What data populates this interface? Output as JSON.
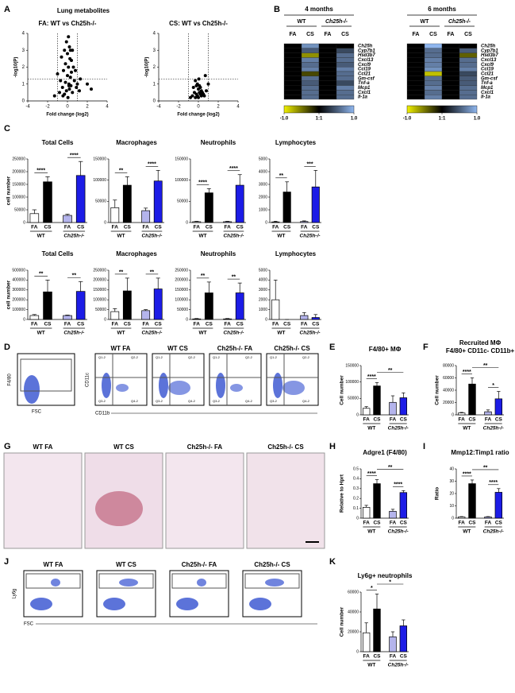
{
  "figure": {
    "letters": [
      "A",
      "B",
      "C",
      "D",
      "E",
      "F",
      "G",
      "H",
      "I",
      "J",
      "K"
    ],
    "volcano_title": "Lung metabolites",
    "samples": [
      "WT FA",
      "WT CS",
      "Ch25h-/- FA",
      "Ch25h-/- CS"
    ],
    "gate_axes": [
      "F4/80",
      "FSC"
    ],
    "flow_axes": [
      "CD11c",
      "CD11b"
    ],
    "quadrants": [
      "Q1-2",
      "Q2-2",
      "Q3-2",
      "Q4-2"
    ],
    "ly6g_axes": [
      "Ly6g",
      "FSC"
    ]
  },
  "chart_data": [
    {
      "type": "scatter",
      "title": "FA: WT vs Ch25h-/-",
      "xlabel": "Fold change (log2)",
      "ylabel": "-log10(P)",
      "x": [
        -1.3,
        -1.0,
        -0.8,
        -0.6,
        -0.5,
        -0.4,
        -0.3,
        -0.3,
        -0.2,
        -0.2,
        -0.1,
        -0.1,
        0,
        0,
        0.05,
        0.1,
        0.1,
        0.15,
        0.2,
        0.2,
        0.25,
        0.3,
        0.3,
        0.35,
        0.4,
        0.4,
        0.5,
        0.5,
        0.6,
        0.7,
        0.8,
        0.9,
        1.0,
        1.2,
        1.3,
        2.0,
        2.4,
        -0.7,
        -0.45,
        0.15
      ],
      "values": [
        0.3,
        1.6,
        0.5,
        2.6,
        0.8,
        1.8,
        3.0,
        0.4,
        2.2,
        1.1,
        3.5,
        0.6,
        2.8,
        1.5,
        0.2,
        3.8,
        2.0,
        1.0,
        3.2,
        0.7,
        2.5,
        1.4,
        3.0,
        0.9,
        2.4,
        1.7,
        3.0,
        0.5,
        2.0,
        1.2,
        1.8,
        0.8,
        1.0,
        0.6,
        1.3,
        1.0,
        0.7,
        1.2,
        0.3,
        0.9
      ],
      "xlim": [
        -4,
        4
      ],
      "xticks": [
        -4,
        -2,
        0,
        2,
        4
      ],
      "ylim": [
        0,
        4
      ],
      "yticks": [
        0,
        1,
        2,
        3,
        4
      ],
      "xlines": [
        -1,
        1
      ],
      "ylines": [
        1.3
      ],
      "color": "#000000"
    },
    {
      "type": "scatter",
      "title": "CS: WT vs Ch25h-/-",
      "xlabel": "Fold change (log2)",
      "ylabel": "-log10(P)",
      "x": [
        -0.6,
        -0.5,
        -0.4,
        -0.3,
        -0.3,
        -0.2,
        -0.2,
        -0.1,
        -0.1,
        0,
        0,
        0.05,
        0.1,
        0.1,
        0.2,
        0.2,
        0.3,
        0.3,
        0.4,
        0.5,
        0.6,
        0.7,
        0.8,
        1.0,
        -0.8
      ],
      "values": [
        0.3,
        0.8,
        0.5,
        1.2,
        0.2,
        0.9,
        0.4,
        1.0,
        0.3,
        0.7,
        0.2,
        1.3,
        0.5,
        0.9,
        0.4,
        0.8,
        0.3,
        0.6,
        0.5,
        0.4,
        0.3,
        1.5,
        0.6,
        1.0,
        0.2
      ],
      "xlim": [
        -4,
        4
      ],
      "xticks": [
        -4,
        -2,
        0,
        2,
        4
      ],
      "ylim": [
        0,
        4
      ],
      "yticks": [
        0,
        1,
        2,
        3,
        4
      ],
      "xlines": [
        -1,
        1
      ],
      "ylines": [
        1.3
      ],
      "color": "#000000"
    },
    {
      "type": "heatmap",
      "title": "4 months",
      "groups": [
        "WT",
        "Ch25h-/-"
      ],
      "columns": [
        "FA",
        "CS",
        "FA",
        "CS"
      ],
      "rows": [
        "Ch25h",
        "Cyp7b1",
        "Hsd3b7",
        "Cxcl13",
        "Cxcl9",
        "Ccl19",
        "Ccl21",
        "Gm-csf",
        "Tnf-a",
        "Mcp1",
        "Cxcl1",
        "Il-1a"
      ],
      "values": [
        [
          0,
          0.8,
          0,
          0
        ],
        [
          0,
          0.5,
          0,
          0.4
        ],
        [
          0,
          -0.6,
          0,
          0.6
        ],
        [
          0,
          0.7,
          0,
          0.6
        ],
        [
          0,
          0.6,
          0,
          0.5
        ],
        [
          0,
          0.7,
          0,
          0.7
        ],
        [
          0,
          -0.3,
          0,
          0.6
        ],
        [
          0,
          0.6,
          0,
          0.6
        ],
        [
          0,
          0.5,
          0,
          0.4
        ],
        [
          0,
          0.6,
          0,
          0.7
        ],
        [
          0,
          0.6,
          0,
          0.6
        ],
        [
          0,
          0.6,
          0,
          0.6
        ]
      ],
      "zlim": [
        -1,
        1
      ],
      "zticks": [
        {
          "value": -1,
          "label": "-1.0"
        },
        {
          "value": 0,
          "label": "1:1"
        },
        {
          "value": 1,
          "label": "1.0"
        }
      ],
      "colors": [
        "#f0f000",
        "#000000",
        "#8fb6ee"
      ]
    },
    {
      "type": "heatmap",
      "title": "6 months",
      "groups": [
        "WT",
        "Ch25h-/-"
      ],
      "columns": [
        "FA",
        "CS",
        "FA",
        "CS"
      ],
      "rows": [
        "Ch25h",
        "Cyp7b1",
        "Hsd3b7",
        "Cxcl13",
        "Cxcl9",
        "Ccl19",
        "Ccl21",
        "Gm-csf",
        "Tnf-a",
        "Mcp1",
        "Cxcl1",
        "Il-1a"
      ],
      "values": [
        [
          0,
          1,
          0,
          0
        ],
        [
          0,
          0.6,
          0,
          0.5
        ],
        [
          0,
          0.6,
          0,
          -0.4
        ],
        [
          0,
          0.7,
          0,
          0.6
        ],
        [
          0,
          0.7,
          0,
          0.6
        ],
        [
          0,
          0.8,
          0,
          0.7
        ],
        [
          0,
          -0.8,
          0,
          0.4
        ],
        [
          0,
          0.6,
          0,
          0.5
        ],
        [
          0,
          0.6,
          0,
          0.5
        ],
        [
          0,
          0.7,
          0,
          0.6
        ],
        [
          0,
          0.6,
          0,
          0.6
        ],
        [
          0,
          0.7,
          0,
          0.6
        ]
      ],
      "zlim": [
        -1,
        1
      ],
      "zticks": [
        {
          "value": -1,
          "label": "-1.0"
        },
        {
          "value": 0,
          "label": "1:1"
        },
        {
          "value": 1,
          "label": "1.0"
        }
      ],
      "colors": [
        "#f0f000",
        "#000000",
        "#8fb6ee"
      ]
    },
    {
      "type": "bar",
      "title": "Total Cells",
      "ylabel": "cell number",
      "categories": [
        "FA",
        "CS",
        "FA",
        "CS"
      ],
      "groups": [
        "WT",
        "Ch25h-/-"
      ],
      "values": [
        35000,
        160000,
        28000,
        185000
      ],
      "errors": [
        15000,
        20000,
        5000,
        55000
      ],
      "colors": [
        "#ffffff",
        "#000000",
        "#b4b4ec",
        "#1c1ce6"
      ],
      "ylim": [
        0,
        250000
      ],
      "yticks": [
        0,
        50000,
        100000,
        150000,
        200000,
        250000
      ],
      "significance": [
        {
          "label": "****",
          "bars": [
            0,
            1
          ]
        },
        {
          "label": "****",
          "bars": [
            2,
            3
          ]
        }
      ]
    },
    {
      "type": "bar",
      "title": "Macrophages",
      "categories": [
        "FA",
        "CS",
        "FA",
        "CS"
      ],
      "groups": [
        "WT",
        "Ch25h-/-"
      ],
      "values": [
        35000,
        88000,
        28000,
        98000
      ],
      "errors": [
        18000,
        20000,
        6000,
        25000
      ],
      "colors": [
        "#ffffff",
        "#000000",
        "#b4b4ec",
        "#1c1ce6"
      ],
      "ylim": [
        0,
        150000
      ],
      "yticks": [
        0,
        50000,
        100000,
        150000
      ],
      "significance": [
        {
          "label": "**",
          "bars": [
            0,
            1
          ]
        },
        {
          "label": "****",
          "bars": [
            2,
            3
          ]
        }
      ]
    },
    {
      "type": "bar",
      "title": "Neutrophils",
      "categories": [
        "FA",
        "CS",
        "FA",
        "CS"
      ],
      "groups": [
        "WT",
        "Ch25h-/-"
      ],
      "values": [
        2000,
        70000,
        2000,
        88000
      ],
      "errors": [
        1000,
        10000,
        1000,
        25000
      ],
      "colors": [
        "#ffffff",
        "#000000",
        "#b4b4ec",
        "#1c1ce6"
      ],
      "ylim": [
        0,
        150000
      ],
      "yticks": [
        0,
        50000,
        100000,
        150000
      ],
      "significance": [
        {
          "label": "****",
          "bars": [
            0,
            1
          ]
        },
        {
          "label": "****",
          "bars": [
            2,
            3
          ]
        }
      ]
    },
    {
      "type": "bar",
      "title": "Lymphocytes",
      "categories": [
        "FA",
        "CS",
        "FA",
        "CS"
      ],
      "groups": [
        "WT",
        "Ch25h-/-"
      ],
      "values": [
        50,
        2400,
        80,
        2800
      ],
      "errors": [
        50,
        800,
        50,
        1300
      ],
      "colors": [
        "#ffffff",
        "#000000",
        "#b4b4ec",
        "#1c1ce6"
      ],
      "ylim": [
        0,
        5000
      ],
      "yticks": [
        0,
        1000,
        2000,
        3000,
        4000,
        5000
      ],
      "significance": [
        {
          "label": "**",
          "bars": [
            0,
            1
          ]
        },
        {
          "label": "***",
          "bars": [
            2,
            3
          ]
        }
      ]
    },
    {
      "type": "bar",
      "title": "Total Cells",
      "ylabel": "cell number",
      "categories": [
        "FA",
        "CS",
        "FA",
        "CS"
      ],
      "groups": [
        "WT",
        "Ch25h-/-"
      ],
      "values": [
        40000,
        280000,
        40000,
        285000
      ],
      "errors": [
        10000,
        120000,
        5000,
        100000
      ],
      "colors": [
        "#ffffff",
        "#000000",
        "#b4b4ec",
        "#1c1ce6"
      ],
      "ylim": [
        0,
        500000
      ],
      "yticks": [
        0,
        100000,
        200000,
        300000,
        400000,
        500000
      ],
      "significance": [
        {
          "label": "**",
          "bars": [
            0,
            1
          ]
        },
        {
          "label": "**",
          "bars": [
            2,
            3
          ]
        }
      ]
    },
    {
      "type": "bar",
      "title": "Macrophages",
      "categories": [
        "FA",
        "CS",
        "FA",
        "CS"
      ],
      "groups": [
        "WT",
        "Ch25h-/-"
      ],
      "values": [
        40000,
        145000,
        45000,
        155000
      ],
      "errors": [
        15000,
        65000,
        5000,
        55000
      ],
      "colors": [
        "#ffffff",
        "#000000",
        "#b4b4ec",
        "#1c1ce6"
      ],
      "ylim": [
        0,
        250000
      ],
      "yticks": [
        0,
        50000,
        100000,
        150000,
        200000,
        250000
      ],
      "significance": [
        {
          "label": "**",
          "bars": [
            0,
            1
          ]
        },
        {
          "label": "**",
          "bars": [
            2,
            3
          ]
        }
      ]
    },
    {
      "type": "bar",
      "title": "Neutrophils",
      "categories": [
        "FA",
        "CS",
        "FA",
        "CS"
      ],
      "groups": [
        "WT",
        "Ch25h-/-"
      ],
      "values": [
        3000,
        135000,
        3000,
        135000
      ],
      "errors": [
        2000,
        55000,
        2000,
        50000
      ],
      "colors": [
        "#ffffff",
        "#000000",
        "#b4b4ec",
        "#1c1ce6"
      ],
      "ylim": [
        0,
        250000
      ],
      "yticks": [
        0,
        50000,
        100000,
        150000,
        200000,
        250000
      ],
      "significance": [
        {
          "label": "**",
          "bars": [
            0,
            1
          ]
        },
        {
          "label": "**",
          "bars": [
            2,
            3
          ]
        }
      ]
    },
    {
      "type": "bar",
      "title": "Lymphocytes",
      "categories": [
        "FA",
        "CS",
        "FA",
        "CS"
      ],
      "groups": [
        "WT",
        "Ch25h-/-"
      ],
      "values": [
        2000,
        0,
        400,
        200
      ],
      "errors": [
        2000,
        0,
        300,
        300
      ],
      "colors": [
        "#ffffff",
        "#000000",
        "#b4b4ec",
        "#1c1ce6"
      ],
      "ylim": [
        0,
        5000
      ],
      "yticks": [
        0,
        1000,
        2000,
        3000,
        4000,
        5000
      ],
      "significance": []
    },
    {
      "type": "bar",
      "title": "F4/80+ MΦ",
      "ylabel": "Cell number",
      "categories": [
        "FA",
        "CS",
        "FA",
        "CS"
      ],
      "groups": [
        "WT",
        "Ch25h-/-"
      ],
      "values": [
        20000,
        88000,
        38000,
        52000
      ],
      "errors": [
        5000,
        10000,
        20000,
        15000
      ],
      "colors": [
        "#ffffff",
        "#000000",
        "#b4b4ec",
        "#1c1ce6"
      ],
      "ylim": [
        0,
        150000
      ],
      "yticks": [
        0,
        50000,
        100000,
        150000
      ],
      "significance": [
        {
          "label": "****",
          "bars": [
            0,
            1
          ]
        },
        {
          "label": "**",
          "bars": [
            1,
            3
          ]
        }
      ]
    },
    {
      "type": "bar",
      "title": "Recruited MΦ",
      "subtitle": "F4/80+ CD11c- CD11b+",
      "ylabel": "Cell number",
      "categories": [
        "FA",
        "CS",
        "FA",
        "CS"
      ],
      "groups": [
        "WT",
        "Ch25h-/-"
      ],
      "values": [
        3000,
        50000,
        5000,
        26000
      ],
      "errors": [
        1000,
        10000,
        3000,
        12000
      ],
      "colors": [
        "#ffffff",
        "#000000",
        "#b4b4ec",
        "#1c1ce6"
      ],
      "ylim": [
        0,
        80000
      ],
      "yticks": [
        0,
        20000,
        40000,
        60000,
        80000
      ],
      "significance": [
        {
          "label": "****",
          "bars": [
            0,
            1
          ]
        },
        {
          "label": "**",
          "bars": [
            1,
            3
          ]
        },
        {
          "label": "*",
          "bars": [
            2,
            3
          ]
        }
      ]
    },
    {
      "type": "bar",
      "title": "Adgre1 (F4/80)",
      "ylabel": "Relative to Hprt",
      "categories": [
        "FA",
        "CS",
        "FA",
        "CS"
      ],
      "groups": [
        "WT",
        "Ch25h-/-"
      ],
      "values": [
        0.11,
        0.35,
        0.07,
        0.26
      ],
      "errors": [
        0.02,
        0.04,
        0.02,
        0.02
      ],
      "colors": [
        "#ffffff",
        "#000000",
        "#b4b4ec",
        "#1c1ce6"
      ],
      "ylim": [
        0,
        0.5
      ],
      "yticks": [
        0,
        0.1,
        0.2,
        0.3,
        0.4,
        0.5
      ],
      "significance": [
        {
          "label": "****",
          "bars": [
            0,
            1
          ]
        },
        {
          "label": "**",
          "bars": [
            1,
            3
          ]
        },
        {
          "label": "****",
          "bars": [
            2,
            3
          ]
        }
      ]
    },
    {
      "type": "bar",
      "title": "Mmp12:Timp1 ratio",
      "ylabel": "Ratio",
      "categories": [
        "FA",
        "CS",
        "FA",
        "CS"
      ],
      "groups": [
        "WT",
        "Ch25h-/-"
      ],
      "values": [
        1,
        28,
        1,
        21
      ],
      "errors": [
        0.3,
        3,
        0.3,
        3
      ],
      "colors": [
        "#ffffff",
        "#000000",
        "#b4b4ec",
        "#1c1ce6"
      ],
      "ylim": [
        0,
        40
      ],
      "yticks": [
        0,
        10,
        20,
        30,
        40
      ],
      "significance": [
        {
          "label": "****",
          "bars": [
            0,
            1
          ]
        },
        {
          "label": "**",
          "bars": [
            1,
            3
          ]
        },
        {
          "label": "****",
          "bars": [
            2,
            3
          ]
        }
      ]
    },
    {
      "type": "bar",
      "title": "Ly6g+ neutrophils",
      "ylabel": "Cell number",
      "categories": [
        "FA",
        "CS",
        "FA",
        "CS"
      ],
      "groups": [
        "WT",
        "Ch25h-/-"
      ],
      "values": [
        19000,
        43000,
        15000,
        26000
      ],
      "errors": [
        10000,
        15000,
        5000,
        6000
      ],
      "colors": [
        "#ffffff",
        "#000000",
        "#b4b4ec",
        "#1c1ce6"
      ],
      "ylim": [
        0,
        60000
      ],
      "yticks": [
        0,
        20000,
        40000,
        60000
      ],
      "significance": [
        {
          "label": "*",
          "bars": [
            0,
            1
          ]
        },
        {
          "label": "*",
          "bars": [
            1,
            3
          ]
        }
      ]
    }
  ]
}
